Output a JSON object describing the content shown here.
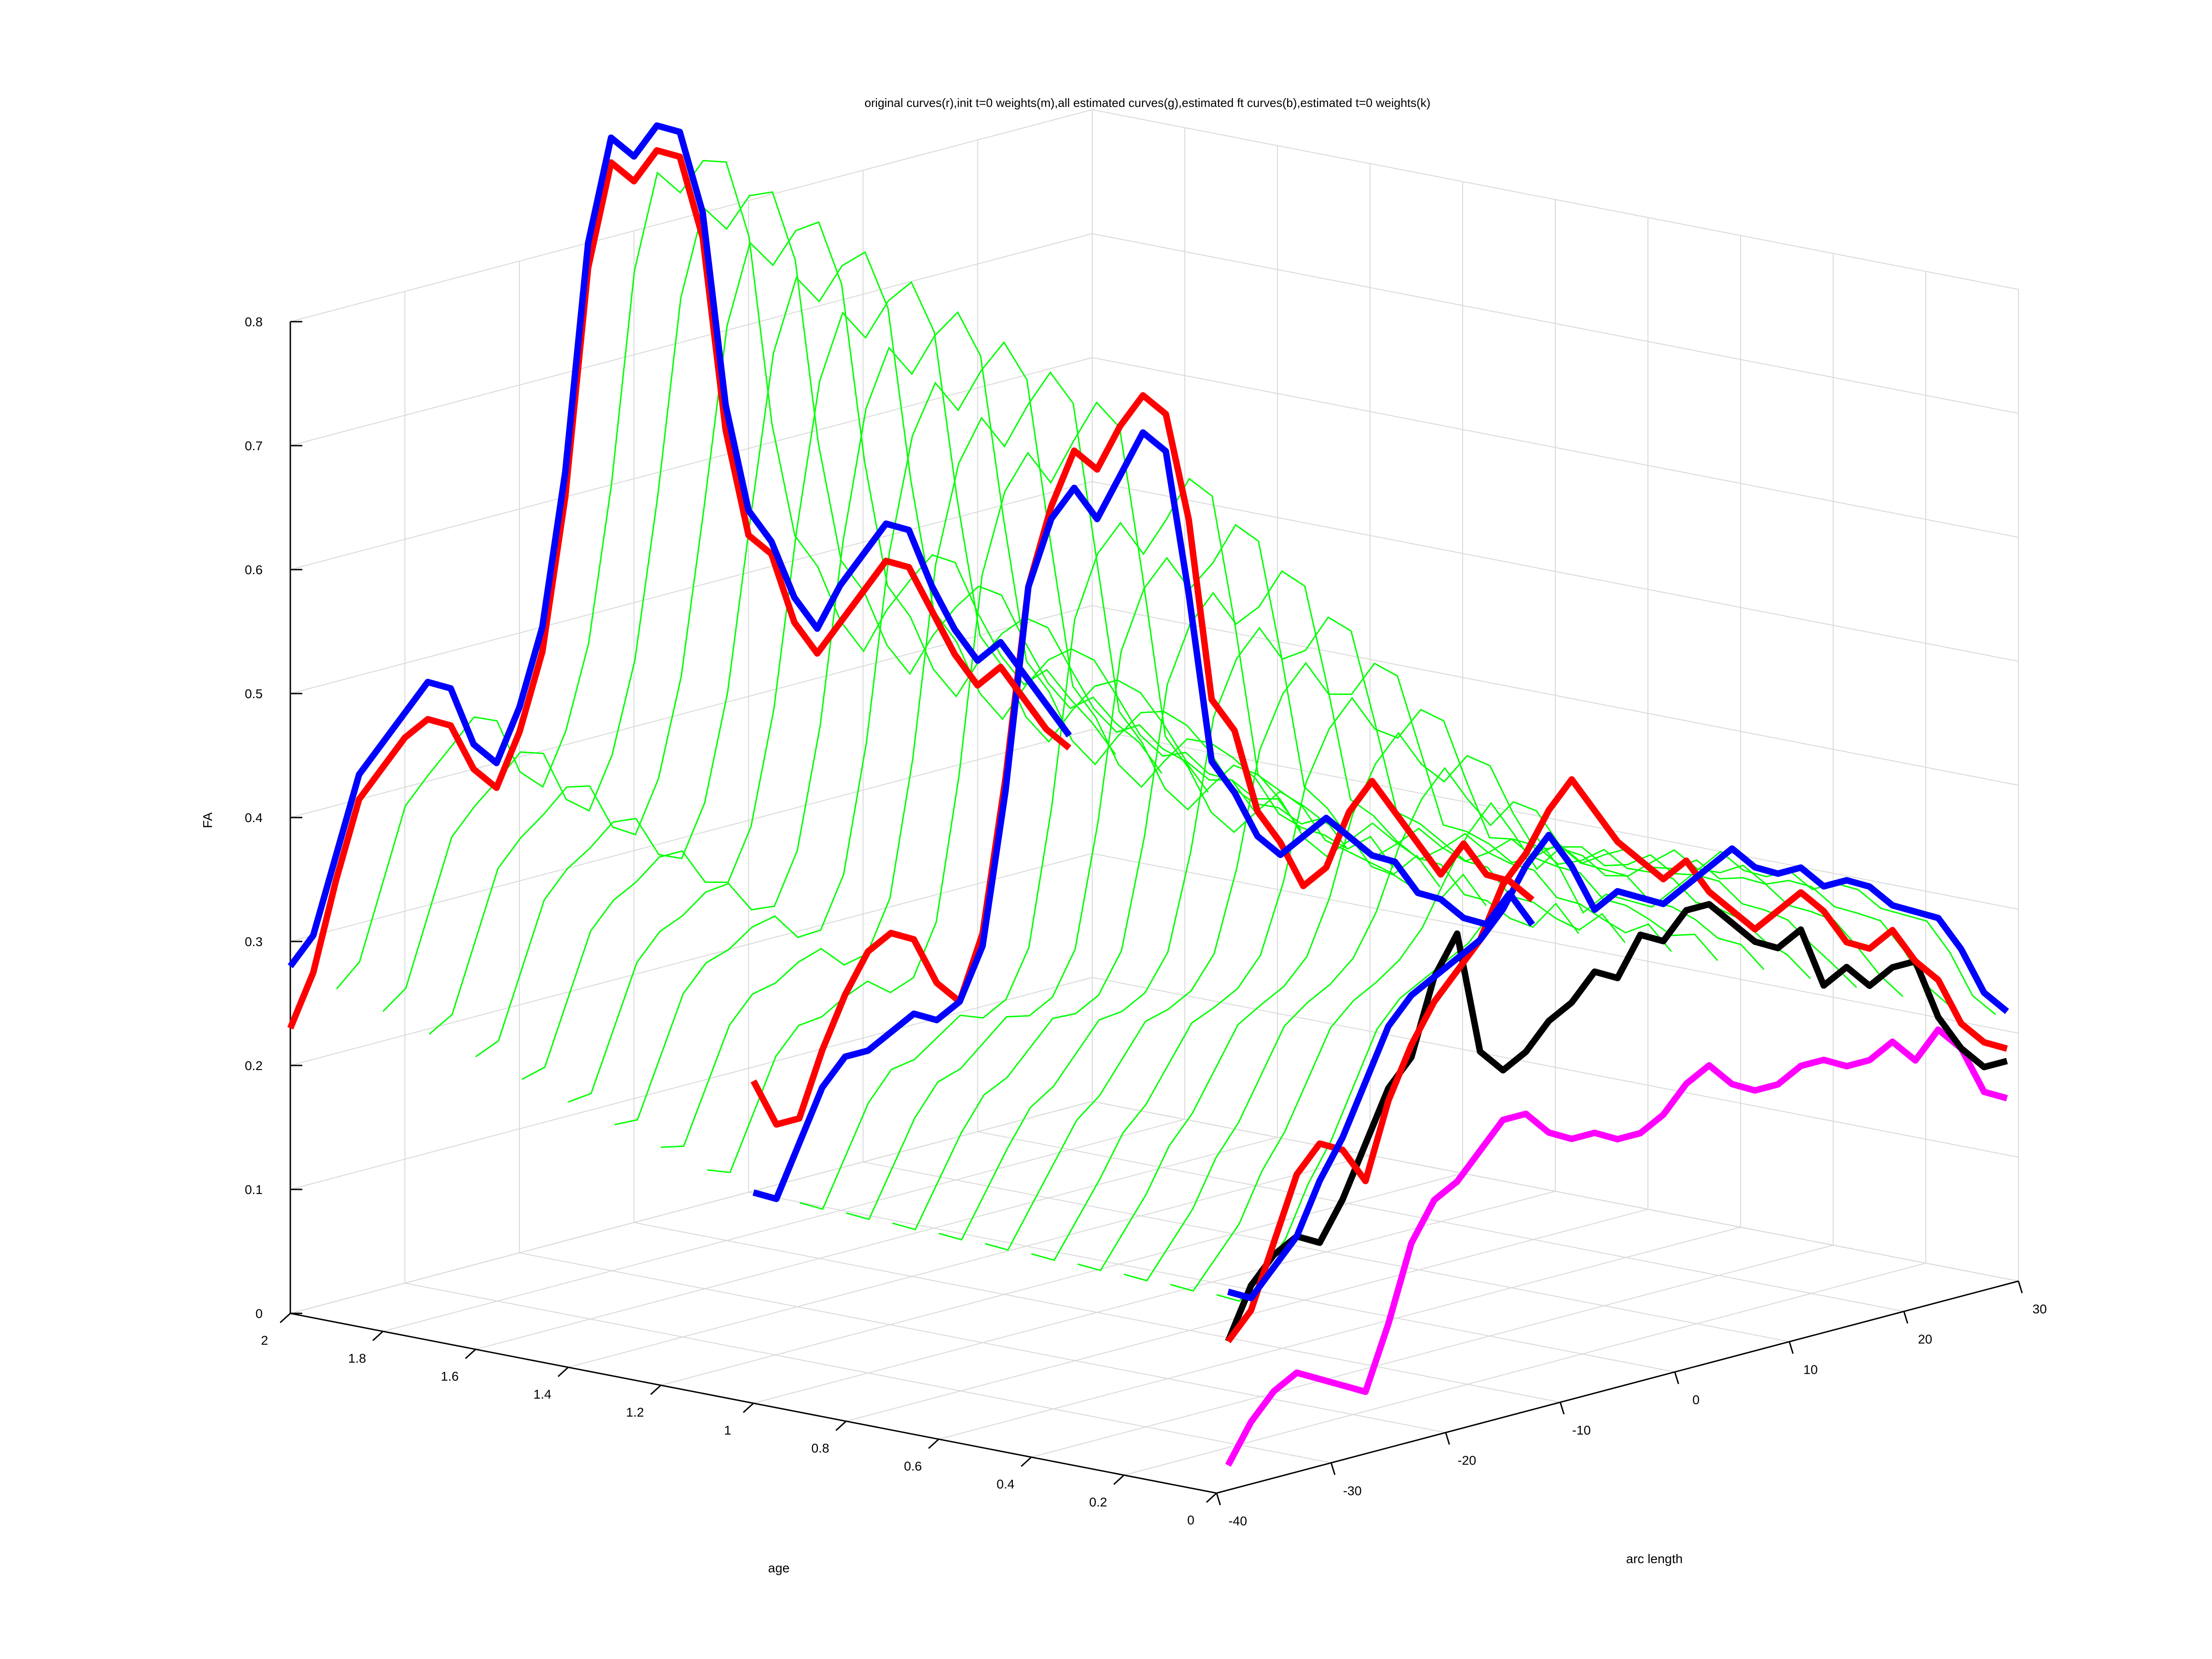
{
  "chart_data": {
    "type": "line3d",
    "title": "original curves(r),init t=0 weights(m),all estimated curves(g),estimated ft curves(b),estimated t=0 weights(k)",
    "xlabel": "arc length",
    "ylabel": "age",
    "zlabel": "FA",
    "xlim": [
      -40,
      30
    ],
    "ylim": [
      0,
      2
    ],
    "zlim": [
      0,
      0.8
    ],
    "x_ticks": [
      "-40",
      "-30",
      "-20",
      "-10",
      "0",
      "10",
      "20",
      "30"
    ],
    "y_ticks": [
      "0",
      "0.2",
      "0.4",
      "0.6",
      "0.8",
      "1",
      "1.2",
      "1.4",
      "1.6",
      "1.8",
      "2"
    ],
    "z_ticks": [
      "0",
      "0.1",
      "0.2",
      "0.3",
      "0.4",
      "0.5",
      "0.6",
      "0.7",
      "0.8"
    ],
    "grid": true,
    "colors": {
      "original": "#ff0000",
      "init_weights": "#ff00ff",
      "all_estimated": "#00ff00",
      "estimated_ft": "#0000ff",
      "estimated_weights": "#000000",
      "grid": "#d9d9d9",
      "axes": "#000000"
    },
    "all_estimated_ages": [
      0.0,
      0.1,
      0.2,
      0.3,
      0.4,
      0.5,
      0.6,
      0.7,
      0.8,
      0.9,
      1.0,
      1.1,
      1.2,
      1.3,
      1.4,
      1.5,
      1.6,
      1.7,
      1.8,
      1.9,
      2.0
    ],
    "series": [
      {
        "role": "init_weights",
        "age": 0.0,
        "x": [
          -39,
          -37,
          -35,
          -33,
          -31,
          -29,
          -27,
          -25,
          -23,
          -21,
          -19,
          -17,
          -15,
          -13,
          -11,
          -9,
          -7,
          -5,
          -3,
          -1,
          1,
          3,
          5,
          7,
          9,
          11,
          13,
          15,
          17,
          19,
          21,
          23,
          25,
          27,
          29
        ],
        "z": [
          0.02,
          0.05,
          0.07,
          0.08,
          0.07,
          0.06,
          0.05,
          0.1,
          0.16,
          0.19,
          0.2,
          0.22,
          0.24,
          0.24,
          0.22,
          0.21,
          0.21,
          0.2,
          0.2,
          0.21,
          0.23,
          0.24,
          0.22,
          0.21,
          0.21,
          0.22,
          0.22,
          0.21,
          0.21,
          0.22,
          0.2,
          0.22,
          0.2,
          0.16,
          0.15
        ]
      },
      {
        "role": "estimated_weights",
        "age": 0.0,
        "x": [
          -39,
          -37,
          -35,
          -33,
          -31,
          -29,
          -27,
          -25,
          -23,
          -21,
          -19,
          -17,
          -15,
          -13,
          -11,
          -9,
          -7,
          -5,
          -3,
          -1,
          1,
          3,
          5,
          7,
          9,
          11,
          13,
          15,
          17,
          19,
          21,
          23,
          25,
          27,
          29
        ],
        "z": [
          0.12,
          0.16,
          0.18,
          0.19,
          0.18,
          0.21,
          0.25,
          0.29,
          0.31,
          0.37,
          0.4,
          0.3,
          0.28,
          0.29,
          0.31,
          0.32,
          0.34,
          0.33,
          0.36,
          0.35,
          0.37,
          0.37,
          0.35,
          0.33,
          0.32,
          0.33,
          0.28,
          0.29,
          0.27,
          0.28,
          0.28,
          0.23,
          0.2,
          0.18,
          0.18
        ]
      },
      {
        "role": "original",
        "age": 0.0,
        "x": [
          -39,
          -37,
          -35,
          -33,
          -31,
          -29,
          -27,
          -25,
          -23,
          -21,
          -19,
          -17,
          -15,
          -13,
          -11,
          -9,
          -7,
          -5,
          -3,
          -1,
          1,
          3,
          5,
          7,
          9,
          11,
          13,
          15,
          17,
          19,
          21,
          23,
          25,
          27,
          29
        ],
        "z": [
          0.12,
          0.14,
          0.19,
          0.24,
          0.26,
          0.25,
          0.22,
          0.28,
          0.32,
          0.35,
          0.37,
          0.39,
          0.43,
          0.45,
          0.48,
          0.5,
          0.47,
          0.44,
          0.42,
          0.4,
          0.41,
          0.38,
          0.36,
          0.34,
          0.35,
          0.36,
          0.34,
          0.31,
          0.3,
          0.31,
          0.28,
          0.26,
          0.22,
          0.2,
          0.19
        ]
      },
      {
        "role": "estimated_ft",
        "age": 0.0,
        "x": [
          -39,
          -37,
          -35,
          -33,
          -31,
          -29,
          -27,
          -25,
          -23,
          -21,
          -19,
          -17,
          -15,
          -13,
          -11,
          -9,
          -7,
          -5,
          -3,
          -1,
          1,
          3,
          5,
          7,
          9,
          11,
          13,
          15,
          17,
          19,
          21,
          23,
          25,
          27,
          29
        ],
        "z": [
          0.16,
          0.15,
          0.17,
          0.19,
          0.23,
          0.26,
          0.3,
          0.34,
          0.36,
          0.37,
          0.38,
          0.39,
          0.41,
          0.44,
          0.46,
          0.43,
          0.39,
          0.4,
          0.39,
          0.38,
          0.39,
          0.4,
          0.41,
          0.39,
          0.38,
          0.38,
          0.36,
          0.36,
          0.35,
          0.33,
          0.32,
          0.31,
          0.28,
          0.24,
          0.22
        ]
      },
      {
        "role": "original",
        "age": 1.0,
        "x": [
          -40,
          -38,
          -36,
          -34,
          -32,
          -30,
          -28,
          -26,
          -24,
          -22,
          -20,
          -18,
          -16,
          -14,
          -12,
          -10,
          -8,
          -6,
          -4,
          -2,
          0,
          2,
          4,
          6,
          8,
          10,
          12,
          14,
          16,
          18,
          20,
          22,
          24,
          26,
          28
        ],
        "z": [
          0.26,
          0.22,
          0.22,
          0.27,
          0.31,
          0.34,
          0.35,
          0.34,
          0.3,
          0.28,
          0.33,
          0.45,
          0.6,
          0.66,
          0.7,
          0.68,
          0.71,
          0.73,
          0.71,
          0.62,
          0.47,
          0.44,
          0.37,
          0.34,
          0.3,
          0.31,
          0.35,
          0.37,
          0.34,
          0.31,
          0.28,
          0.3,
          0.27,
          0.26,
          0.24
        ]
      },
      {
        "role": "estimated_ft",
        "age": 1.0,
        "x": [
          -40,
          -38,
          -36,
          -34,
          -32,
          -30,
          -28,
          -26,
          -24,
          -22,
          -20,
          -18,
          -16,
          -14,
          -12,
          -10,
          -8,
          -6,
          -4,
          -2,
          0,
          2,
          4,
          6,
          8,
          10,
          12,
          14,
          16,
          18,
          20,
          22,
          24,
          26,
          28
        ],
        "z": [
          0.17,
          0.16,
          0.2,
          0.24,
          0.26,
          0.26,
          0.27,
          0.28,
          0.27,
          0.28,
          0.32,
          0.44,
          0.6,
          0.65,
          0.67,
          0.64,
          0.67,
          0.7,
          0.68,
          0.56,
          0.42,
          0.39,
          0.35,
          0.33,
          0.34,
          0.35,
          0.33,
          0.31,
          0.3,
          0.27,
          0.26,
          0.24,
          0.23,
          0.25,
          0.22
        ]
      },
      {
        "role": "original",
        "age": 2.0,
        "x": [
          -40,
          -38,
          -36,
          -34,
          -32,
          -30,
          -28,
          -26,
          -24,
          -22,
          -20,
          -18,
          -16,
          -14,
          -12,
          -10,
          -8,
          -6,
          -4,
          -2,
          0,
          2,
          4,
          6,
          8,
          10,
          12,
          14,
          16,
          18,
          20,
          22,
          24,
          26,
          28
        ],
        "z": [
          0.23,
          0.27,
          0.34,
          0.4,
          0.42,
          0.44,
          0.45,
          0.44,
          0.4,
          0.38,
          0.42,
          0.48,
          0.6,
          0.78,
          0.86,
          0.84,
          0.86,
          0.85,
          0.78,
          0.62,
          0.53,
          0.51,
          0.45,
          0.42,
          0.44,
          0.46,
          0.48,
          0.47,
          0.43,
          0.39,
          0.36,
          0.37,
          0.34,
          0.31,
          0.29
        ]
      },
      {
        "role": "estimated_ft",
        "age": 2.0,
        "x": [
          -40,
          -38,
          -36,
          -34,
          -32,
          -30,
          -28,
          -26,
          -24,
          -22,
          -20,
          -18,
          -16,
          -14,
          -12,
          -10,
          -8,
          -6,
          -4,
          -2,
          0,
          2,
          4,
          6,
          8,
          10,
          12,
          14,
          16,
          18,
          20,
          22,
          24,
          26,
          28
        ],
        "z": [
          0.28,
          0.3,
          0.36,
          0.42,
          0.44,
          0.46,
          0.48,
          0.47,
          0.42,
          0.4,
          0.44,
          0.5,
          0.62,
          0.8,
          0.88,
          0.86,
          0.88,
          0.87,
          0.8,
          0.64,
          0.55,
          0.52,
          0.47,
          0.44,
          0.47,
          0.49,
          0.51,
          0.5,
          0.45,
          0.41,
          0.38,
          0.39,
          0.36,
          0.33,
          0.3
        ]
      }
    ]
  }
}
